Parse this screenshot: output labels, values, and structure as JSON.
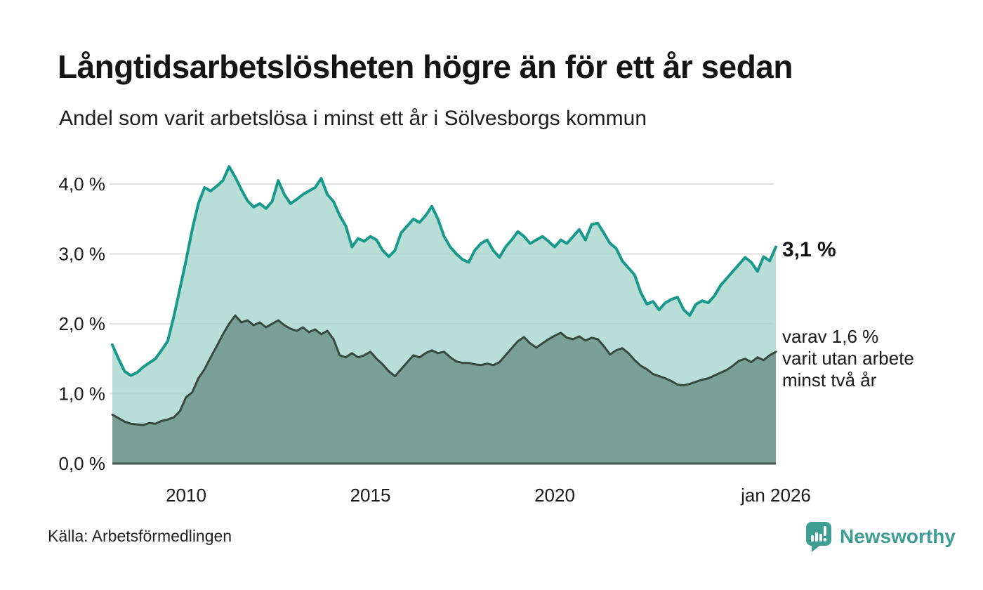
{
  "header": {
    "title": "Långtidsarbetslösheten högre än för ett år sedan",
    "subtitle": "Andel som varit arbetslösa i minst ett år i Sölvesborgs kommun"
  },
  "chart_data": {
    "type": "area",
    "title": "Långtidsarbetslösheten högre än för ett år sedan",
    "subtitle": "Andel som varit arbetslösa i minst ett år i Sölvesborgs kommun",
    "unit": "%",
    "x_start": 2008.0,
    "x_end": 2026.0,
    "points_per_year": 6,
    "xlim": [
      2008.0,
      2026.0
    ],
    "ylim": [
      0,
      4.3
    ],
    "grid": true,
    "legend_position": "none",
    "x_ticks": [
      {
        "value": 2010,
        "label": "2010"
      },
      {
        "value": 2015,
        "label": "2015"
      },
      {
        "value": 2020,
        "label": "2020"
      },
      {
        "value": 2026,
        "label": "jan 2026"
      }
    ],
    "y_ticks": [
      {
        "value": 0,
        "label": "0,0 %"
      },
      {
        "value": 1,
        "label": "1,0 %"
      },
      {
        "value": 2,
        "label": "2,0 %"
      },
      {
        "value": 3,
        "label": "3,0 %"
      },
      {
        "value": 4,
        "label": "4,0 %"
      }
    ],
    "series": [
      {
        "name": "Arbetslösa minst ett år",
        "line_color": "#18998b",
        "fill_color": "#a9d5ce",
        "end_value": "3,1 %",
        "values": [
          1.7,
          1.5,
          1.32,
          1.26,
          1.3,
          1.38,
          1.44,
          1.5,
          1.62,
          1.75,
          2.1,
          2.5,
          2.91,
          3.35,
          3.72,
          3.95,
          3.9,
          3.97,
          4.05,
          4.25,
          4.1,
          3.92,
          3.76,
          3.67,
          3.72,
          3.65,
          3.75,
          4.05,
          3.85,
          3.72,
          3.78,
          3.85,
          3.9,
          3.95,
          4.08,
          3.85,
          3.75,
          3.55,
          3.4,
          3.1,
          3.22,
          3.18,
          3.25,
          3.2,
          3.05,
          2.96,
          3.05,
          3.3,
          3.4,
          3.5,
          3.45,
          3.55,
          3.68,
          3.5,
          3.25,
          3.1,
          3.0,
          2.92,
          2.88,
          3.05,
          3.15,
          3.2,
          3.05,
          2.95,
          3.1,
          3.2,
          3.32,
          3.25,
          3.15,
          3.2,
          3.25,
          3.18,
          3.1,
          3.2,
          3.15,
          3.25,
          3.35,
          3.2,
          3.42,
          3.44,
          3.3,
          3.15,
          3.08,
          2.9,
          2.8,
          2.7,
          2.45,
          2.28,
          2.32,
          2.2,
          2.3,
          2.35,
          2.38,
          2.2,
          2.12,
          2.28,
          2.33,
          2.3,
          2.4,
          2.55,
          2.65,
          2.75,
          2.85,
          2.95,
          2.88,
          2.75,
          2.96,
          2.9,
          3.1
        ]
      },
      {
        "name": "Arbetslösa minst två år",
        "line_color": "#36493f",
        "fill_color": "#74998f",
        "end_value": "1,6 %",
        "values": [
          0.7,
          0.65,
          0.6,
          0.57,
          0.56,
          0.55,
          0.58,
          0.57,
          0.61,
          0.63,
          0.66,
          0.75,
          0.95,
          1.02,
          1.22,
          1.35,
          1.52,
          1.68,
          1.85,
          2.0,
          2.12,
          2.02,
          2.05,
          1.98,
          2.02,
          1.95,
          2.0,
          2.05,
          1.98,
          1.93,
          1.9,
          1.95,
          1.88,
          1.92,
          1.85,
          1.9,
          1.78,
          1.55,
          1.52,
          1.58,
          1.52,
          1.55,
          1.6,
          1.5,
          1.42,
          1.32,
          1.25,
          1.35,
          1.45,
          1.55,
          1.52,
          1.58,
          1.62,
          1.58,
          1.6,
          1.52,
          1.46,
          1.44,
          1.44,
          1.42,
          1.41,
          1.43,
          1.41,
          1.45,
          1.55,
          1.65,
          1.75,
          1.81,
          1.72,
          1.66,
          1.72,
          1.78,
          1.83,
          1.87,
          1.8,
          1.78,
          1.82,
          1.76,
          1.8,
          1.78,
          1.68,
          1.56,
          1.62,
          1.65,
          1.58,
          1.48,
          1.4,
          1.35,
          1.28,
          1.25,
          1.22,
          1.18,
          1.13,
          1.12,
          1.14,
          1.17,
          1.2,
          1.22,
          1.26,
          1.3,
          1.34,
          1.4,
          1.47,
          1.5,
          1.45,
          1.52,
          1.48,
          1.55,
          1.6
        ]
      }
    ],
    "annotations": {
      "series1_end_label": "3,1 %",
      "series2_end_lines": [
        "varav 1,6 %",
        "varit utan arbete",
        "minst två år"
      ]
    },
    "colors": {
      "gridline": "#e0e0e0",
      "axis": "#45584f",
      "text": "#1a1a1a"
    }
  },
  "footer": {
    "source": "Källa: Arbetsförmedlingen",
    "brand_name": "Newsworthy",
    "brand_color": "#3f9e94"
  }
}
